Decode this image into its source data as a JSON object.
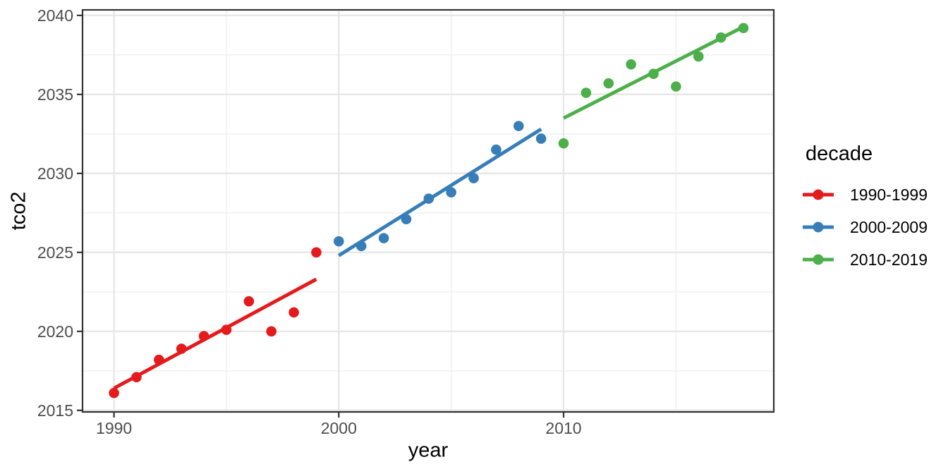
{
  "chart_data": {
    "type": "scatter",
    "title": "",
    "xlabel": "year",
    "ylabel": "tco2",
    "grid": true,
    "xlim": [
      1988.6,
      2019.35
    ],
    "ylim": [
      2014.9,
      2040.35
    ],
    "x_ticks": [
      1990,
      2000,
      2010
    ],
    "x_minor_ticks": [
      1995,
      2005,
      2015
    ],
    "y_ticks": [
      2015,
      2020,
      2025,
      2030,
      2035,
      2040
    ],
    "y_minor_ticks": [
      2017.5,
      2022.5,
      2027.5,
      2032.5,
      2037.5
    ],
    "legend": {
      "title": "decade",
      "position": "right"
    },
    "series": [
      {
        "name": "1990-1999",
        "color": "#e41a1c",
        "x": [
          1990,
          1991,
          1992,
          1993,
          1994,
          1995,
          1996,
          1997,
          1998,
          1999
        ],
        "y": [
          2016.1,
          2017.1,
          2018.2,
          2018.9,
          2019.7,
          2020.1,
          2021.9,
          2020.0,
          2021.2,
          2025.0
        ],
        "trend": {
          "x1": 1990,
          "y1": 2016.4,
          "x2": 1999,
          "y2": 2023.3
        }
      },
      {
        "name": "2000-2009",
        "color": "#377eb8",
        "x": [
          2000,
          2001,
          2002,
          2003,
          2004,
          2005,
          2006,
          2007,
          2008,
          2009
        ],
        "y": [
          2025.7,
          2025.4,
          2025.9,
          2027.1,
          2028.4,
          2028.8,
          2029.7,
          2031.5,
          2033.0,
          2032.2
        ],
        "trend": {
          "x1": 2000,
          "y1": 2024.8,
          "x2": 2009,
          "y2": 2032.8
        }
      },
      {
        "name": "2010-2019",
        "color": "#4daf4a",
        "x": [
          2010,
          2011,
          2012,
          2013,
          2014,
          2015,
          2016,
          2017,
          2018
        ],
        "y": [
          2031.9,
          2035.1,
          2035.7,
          2036.9,
          2036.3,
          2035.5,
          2037.4,
          2038.6,
          2039.2
        ],
        "trend": {
          "x1": 2010,
          "y1": 2033.5,
          "x2": 2018.1,
          "y2": 2039.35
        }
      }
    ],
    "style": {
      "grid_major_color": "#e7e7e7",
      "grid_minor_color": "#efefef",
      "panel_border_color": "#333333",
      "tick_color": "#333333",
      "tick_label_color": "#4d4d4d",
      "background": "#ffffff"
    }
  }
}
